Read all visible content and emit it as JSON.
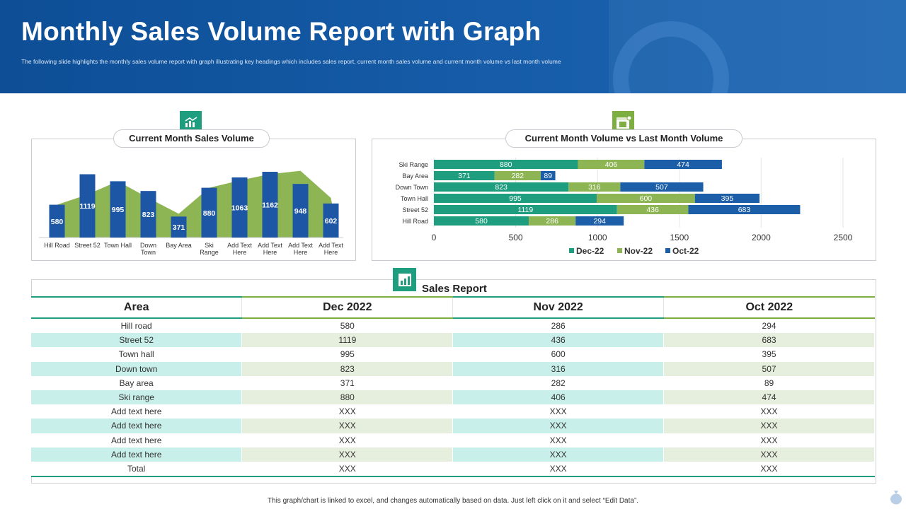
{
  "header": {
    "title": "Monthly Sales Volume Report with Graph",
    "subtitle": "The following slide highlights the monthly sales volume report with graph illustrating key headings which includes sales report, current month sales volume and current month volume vs last month volume"
  },
  "colors": {
    "header_blue": "#0d4e96",
    "teal": "#1e9e7e",
    "green": "#8db553",
    "blue": "#1d5ea8",
    "bar_blue": "#1d56a5"
  },
  "icons": {
    "left": "growth-chart-icon",
    "right": "calendar-icon",
    "table": "report-chart-icon",
    "footer": "money-bag-icon"
  },
  "chart_data": [
    {
      "type": "bar",
      "title": "Current Month Sales Volume",
      "categories": [
        "Hill Road",
        "Street 52",
        "Town Hall",
        "Down Town",
        "Bay Area",
        "Ski Range",
        "Add Text Here",
        "Add Text Here",
        "Add Text Here",
        "Add Text Here"
      ],
      "values": [
        580,
        1119,
        995,
        823,
        371,
        880,
        1063,
        1162,
        948,
        602
      ],
      "area_values": [
        580,
        760,
        995,
        700,
        420,
        880,
        1010,
        1120,
        1180,
        700
      ],
      "ylim": [
        0,
        1250
      ],
      "xlabel": "",
      "ylabel": ""
    },
    {
      "type": "bar",
      "orientation": "horizontal",
      "stacked": true,
      "title": "Current Month Volume vs Last Month Volume",
      "categories": [
        "Ski Range",
        "Bay Area",
        "Down Town",
        "Town Hall",
        "Street 52",
        "Hill Road"
      ],
      "series": [
        {
          "name": "Dec-22",
          "values": [
            880,
            371,
            823,
            995,
            1119,
            580
          ]
        },
        {
          "name": "Nov-22",
          "values": [
            406,
            282,
            316,
            600,
            436,
            286
          ]
        },
        {
          "name": "Oct-22",
          "values": [
            474,
            89,
            507,
            395,
            683,
            294
          ]
        }
      ],
      "xticks": [
        "0",
        "500",
        "1000",
        "1500",
        "2000",
        "2500"
      ],
      "xlim": [
        0,
        2500
      ],
      "legend": "bottom",
      "grid": true
    }
  ],
  "table": {
    "title": "Sales Report",
    "headers": [
      "Area",
      "Dec 2022",
      "Nov 2022",
      "Oct 2022"
    ],
    "rows": [
      [
        "Hill road",
        "580",
        "286",
        "294"
      ],
      [
        "Street 52",
        "1119",
        "436",
        "683"
      ],
      [
        "Town hall",
        "995",
        "600",
        "395"
      ],
      [
        "Down town",
        "823",
        "316",
        "507"
      ],
      [
        "Bay area",
        "371",
        "282",
        "89"
      ],
      [
        "Ski range",
        "880",
        "406",
        "474"
      ],
      [
        "Add text here",
        "XXX",
        "XXX",
        "XXX"
      ],
      [
        "Add text here",
        "XXX",
        "XXX",
        "XXX"
      ],
      [
        "Add text here",
        "XXX",
        "XXX",
        "XXX"
      ],
      [
        "Add text here",
        "XXX",
        "XXX",
        "XXX"
      ],
      [
        "Total",
        "XXX",
        "XXX",
        "XXX"
      ]
    ]
  },
  "footer": {
    "note": "This graph/chart is linked to excel, and changes automatically based on data. Just left click on it and select “Edit Data”."
  }
}
